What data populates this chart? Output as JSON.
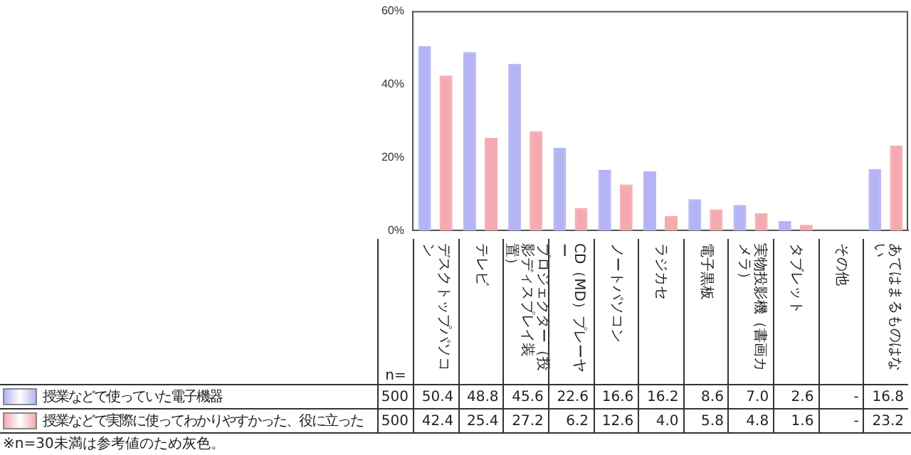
{
  "chart_data": {
    "type": "bar",
    "categories": [
      "デスクトップパソコン",
      "テレビ",
      "プロジェクター（投影ディスプレイ装置）",
      "CD（MD）プレーヤー",
      "ノートパソコン",
      "ラジカセ",
      "電子黒板",
      "実物投影機（書画カメラ）",
      "タブレット",
      "その他",
      "あてはまるものはない"
    ],
    "series": [
      {
        "name": "授業などで使っていた電子機器",
        "color": "#b4b4f4",
        "values": [
          50.4,
          48.8,
          45.6,
          22.6,
          16.6,
          16.2,
          8.6,
          7.0,
          2.6,
          null,
          16.8
        ],
        "value_labels": [
          "50.4",
          "48.8",
          "45.6",
          "22.6",
          "16.6",
          "16.2",
          "8.6",
          "7.0",
          "2.6",
          "-",
          "16.8"
        ]
      },
      {
        "name": "授業などで実際に使ってわかりやすかった、役に立った",
        "color": "#f4aab0",
        "values": [
          42.4,
          25.4,
          27.2,
          6.2,
          12.6,
          4.0,
          5.8,
          4.8,
          1.6,
          null,
          23.2
        ],
        "value_labels": [
          "42.4",
          "25.4",
          "27.2",
          "6.2",
          "12.6",
          "4.0",
          "5.8",
          "4.8",
          "1.6",
          "-",
          "23.2"
        ]
      }
    ],
    "ylim": [
      0,
      60
    ],
    "yticks": [
      {
        "value": 0,
        "label": "0%"
      },
      {
        "value": 20,
        "label": "20%"
      },
      {
        "value": 40,
        "label": "40%"
      },
      {
        "value": 60,
        "label": "60%"
      }
    ],
    "grid": false,
    "legend": "bottom",
    "annotations": [
      "n=",
      "500",
      "500",
      "※n=30未満は参考値のため灰色。"
    ]
  }
}
